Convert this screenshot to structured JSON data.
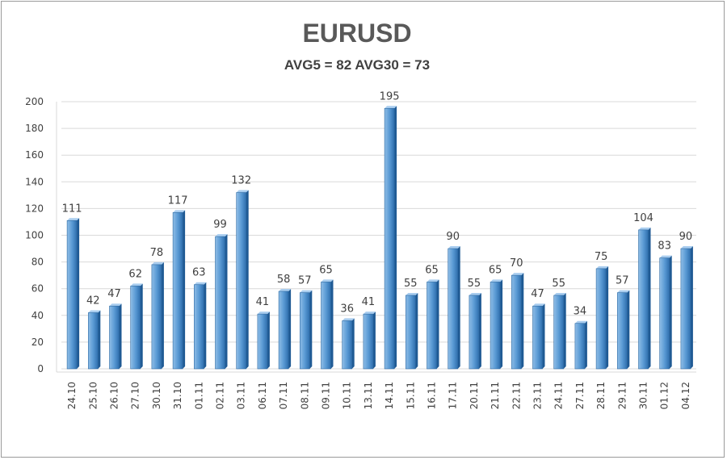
{
  "chart_data": {
    "type": "bar",
    "title": "EURUSD",
    "subtitle": "AVG5 = 82 AVG30 = 73",
    "xlabel": "",
    "ylabel": "",
    "ylim": [
      0,
      200
    ],
    "yticks": [
      "0",
      "20",
      "40",
      "60",
      "80",
      "100",
      "120",
      "140",
      "160",
      "180",
      "200"
    ],
    "grid": true,
    "legend": "none",
    "bar_color": "#5b9bd5",
    "categories": [
      "24.10",
      "25.10",
      "26.10",
      "27.10",
      "30.10",
      "31.10",
      "01.11",
      "02.11",
      "03.11",
      "06.11",
      "07.11",
      "08.11",
      "09.11",
      "10.11",
      "13.11",
      "14.11",
      "15.11",
      "16.11",
      "17.11",
      "20.11",
      "21.11",
      "22.11",
      "23.11",
      "24.11",
      "27.11",
      "28.11",
      "29.11",
      "30.11",
      "01.12",
      "04.12"
    ],
    "values": [
      111,
      42,
      47,
      62,
      78,
      117,
      63,
      99,
      132,
      41,
      58,
      57,
      65,
      36,
      41,
      195,
      55,
      65,
      90,
      55,
      65,
      70,
      47,
      55,
      34,
      75,
      57,
      104,
      83,
      90
    ]
  }
}
